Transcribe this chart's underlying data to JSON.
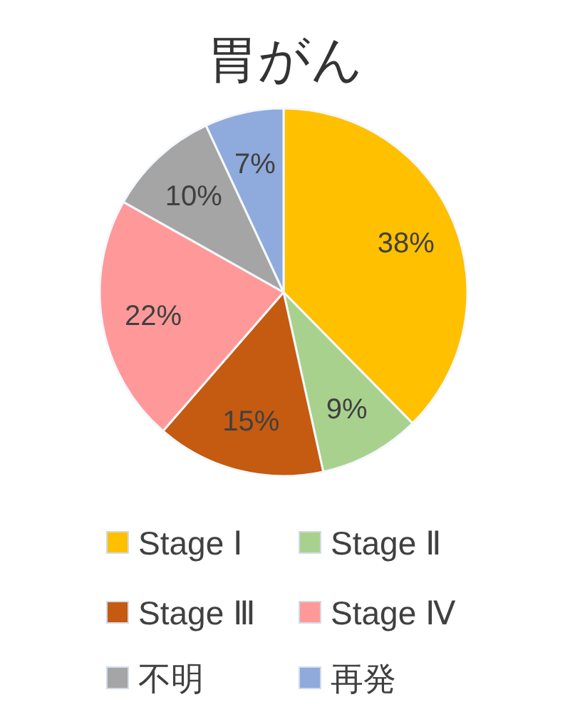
{
  "chart_data": {
    "type": "pie",
    "title": "胃がん",
    "categories": [
      "Stage Ⅰ",
      "Stage Ⅱ",
      "Stage Ⅲ",
      "Stage Ⅳ",
      "不明",
      "再発"
    ],
    "values": [
      38,
      9,
      15,
      22,
      10,
      7
    ],
    "colors": [
      "#ffc000",
      "#a9d18e",
      "#c55a11",
      "#ff9999",
      "#a5a5a5",
      "#8faadc"
    ],
    "value_labels": [
      "38%",
      "9%",
      "15%",
      "22%",
      "10%",
      "7%"
    ],
    "legend": "bottom"
  }
}
